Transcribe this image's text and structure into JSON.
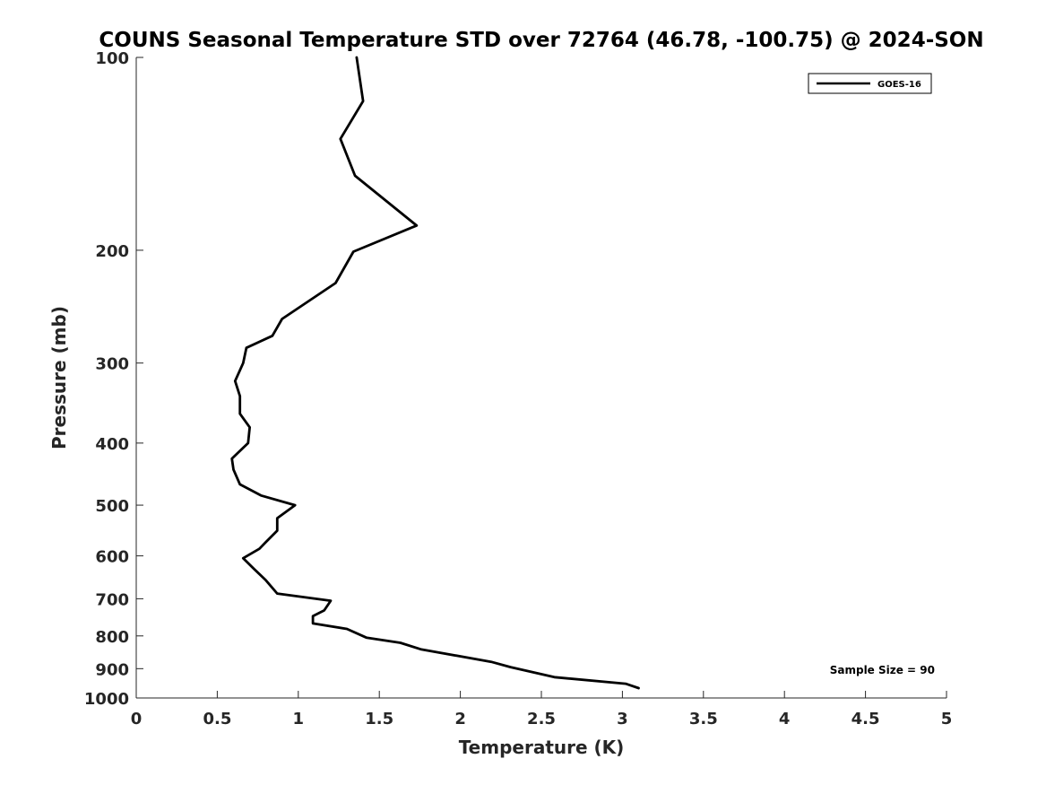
{
  "chart_data": {
    "type": "line",
    "title": "COUNS Seasonal Temperature STD over 72764 (46.78, -100.75) @ 2024-SON",
    "xlabel": "Temperature (K)",
    "ylabel": "Pressure (mb)",
    "xlim": [
      0,
      5
    ],
    "ylim": [
      100,
      1000
    ],
    "yscale": "log",
    "yreversed": true,
    "grid": false,
    "x_ticks": [
      0,
      0.5,
      1,
      1.5,
      2,
      2.5,
      3,
      3.5,
      4,
      4.5,
      5
    ],
    "x_tick_labels": [
      "0",
      "0.5",
      "1",
      "1.5",
      "2",
      "2.5",
      "3",
      "3.5",
      "4",
      "4.5",
      "5"
    ],
    "y_ticks": [
      100,
      200,
      300,
      400,
      500,
      600,
      700,
      800,
      900,
      1000
    ],
    "y_tick_labels": [
      "100",
      "200",
      "300",
      "400",
      "500",
      "600",
      "700",
      "800",
      "900",
      "1000"
    ],
    "legend_position": "top-right",
    "series": [
      {
        "name": "GOES-16",
        "color": "#000000",
        "x": [
          1.36,
          1.4,
          1.26,
          1.35,
          1.73,
          1.34,
          1.23,
          0.9,
          0.84,
          0.68,
          0.66,
          0.61,
          0.64,
          0.64,
          0.7,
          0.69,
          0.59,
          0.6,
          0.64,
          0.77,
          0.98,
          0.87,
          0.87,
          0.8,
          0.76,
          0.66,
          0.73,
          0.8,
          0.87,
          1.2,
          1.16,
          1.09,
          1.09,
          1.3,
          1.42,
          1.63,
          1.76,
          2.19,
          2.31,
          2.58,
          3.02,
          3.1
        ],
        "y": [
          100,
          117,
          134,
          153,
          183,
          201,
          225,
          256,
          272,
          284,
          300,
          320,
          338,
          360,
          378,
          400,
          423,
          440,
          464,
          483,
          500,
          524,
          548,
          571,
          585,
          605,
          630,
          655,
          687,
          705,
          730,
          745,
          765,
          780,
          805,
          820,
          840,
          878,
          895,
          928,
          950,
          965
        ]
      }
    ],
    "annotations": [
      "Sample Size = 90"
    ]
  }
}
